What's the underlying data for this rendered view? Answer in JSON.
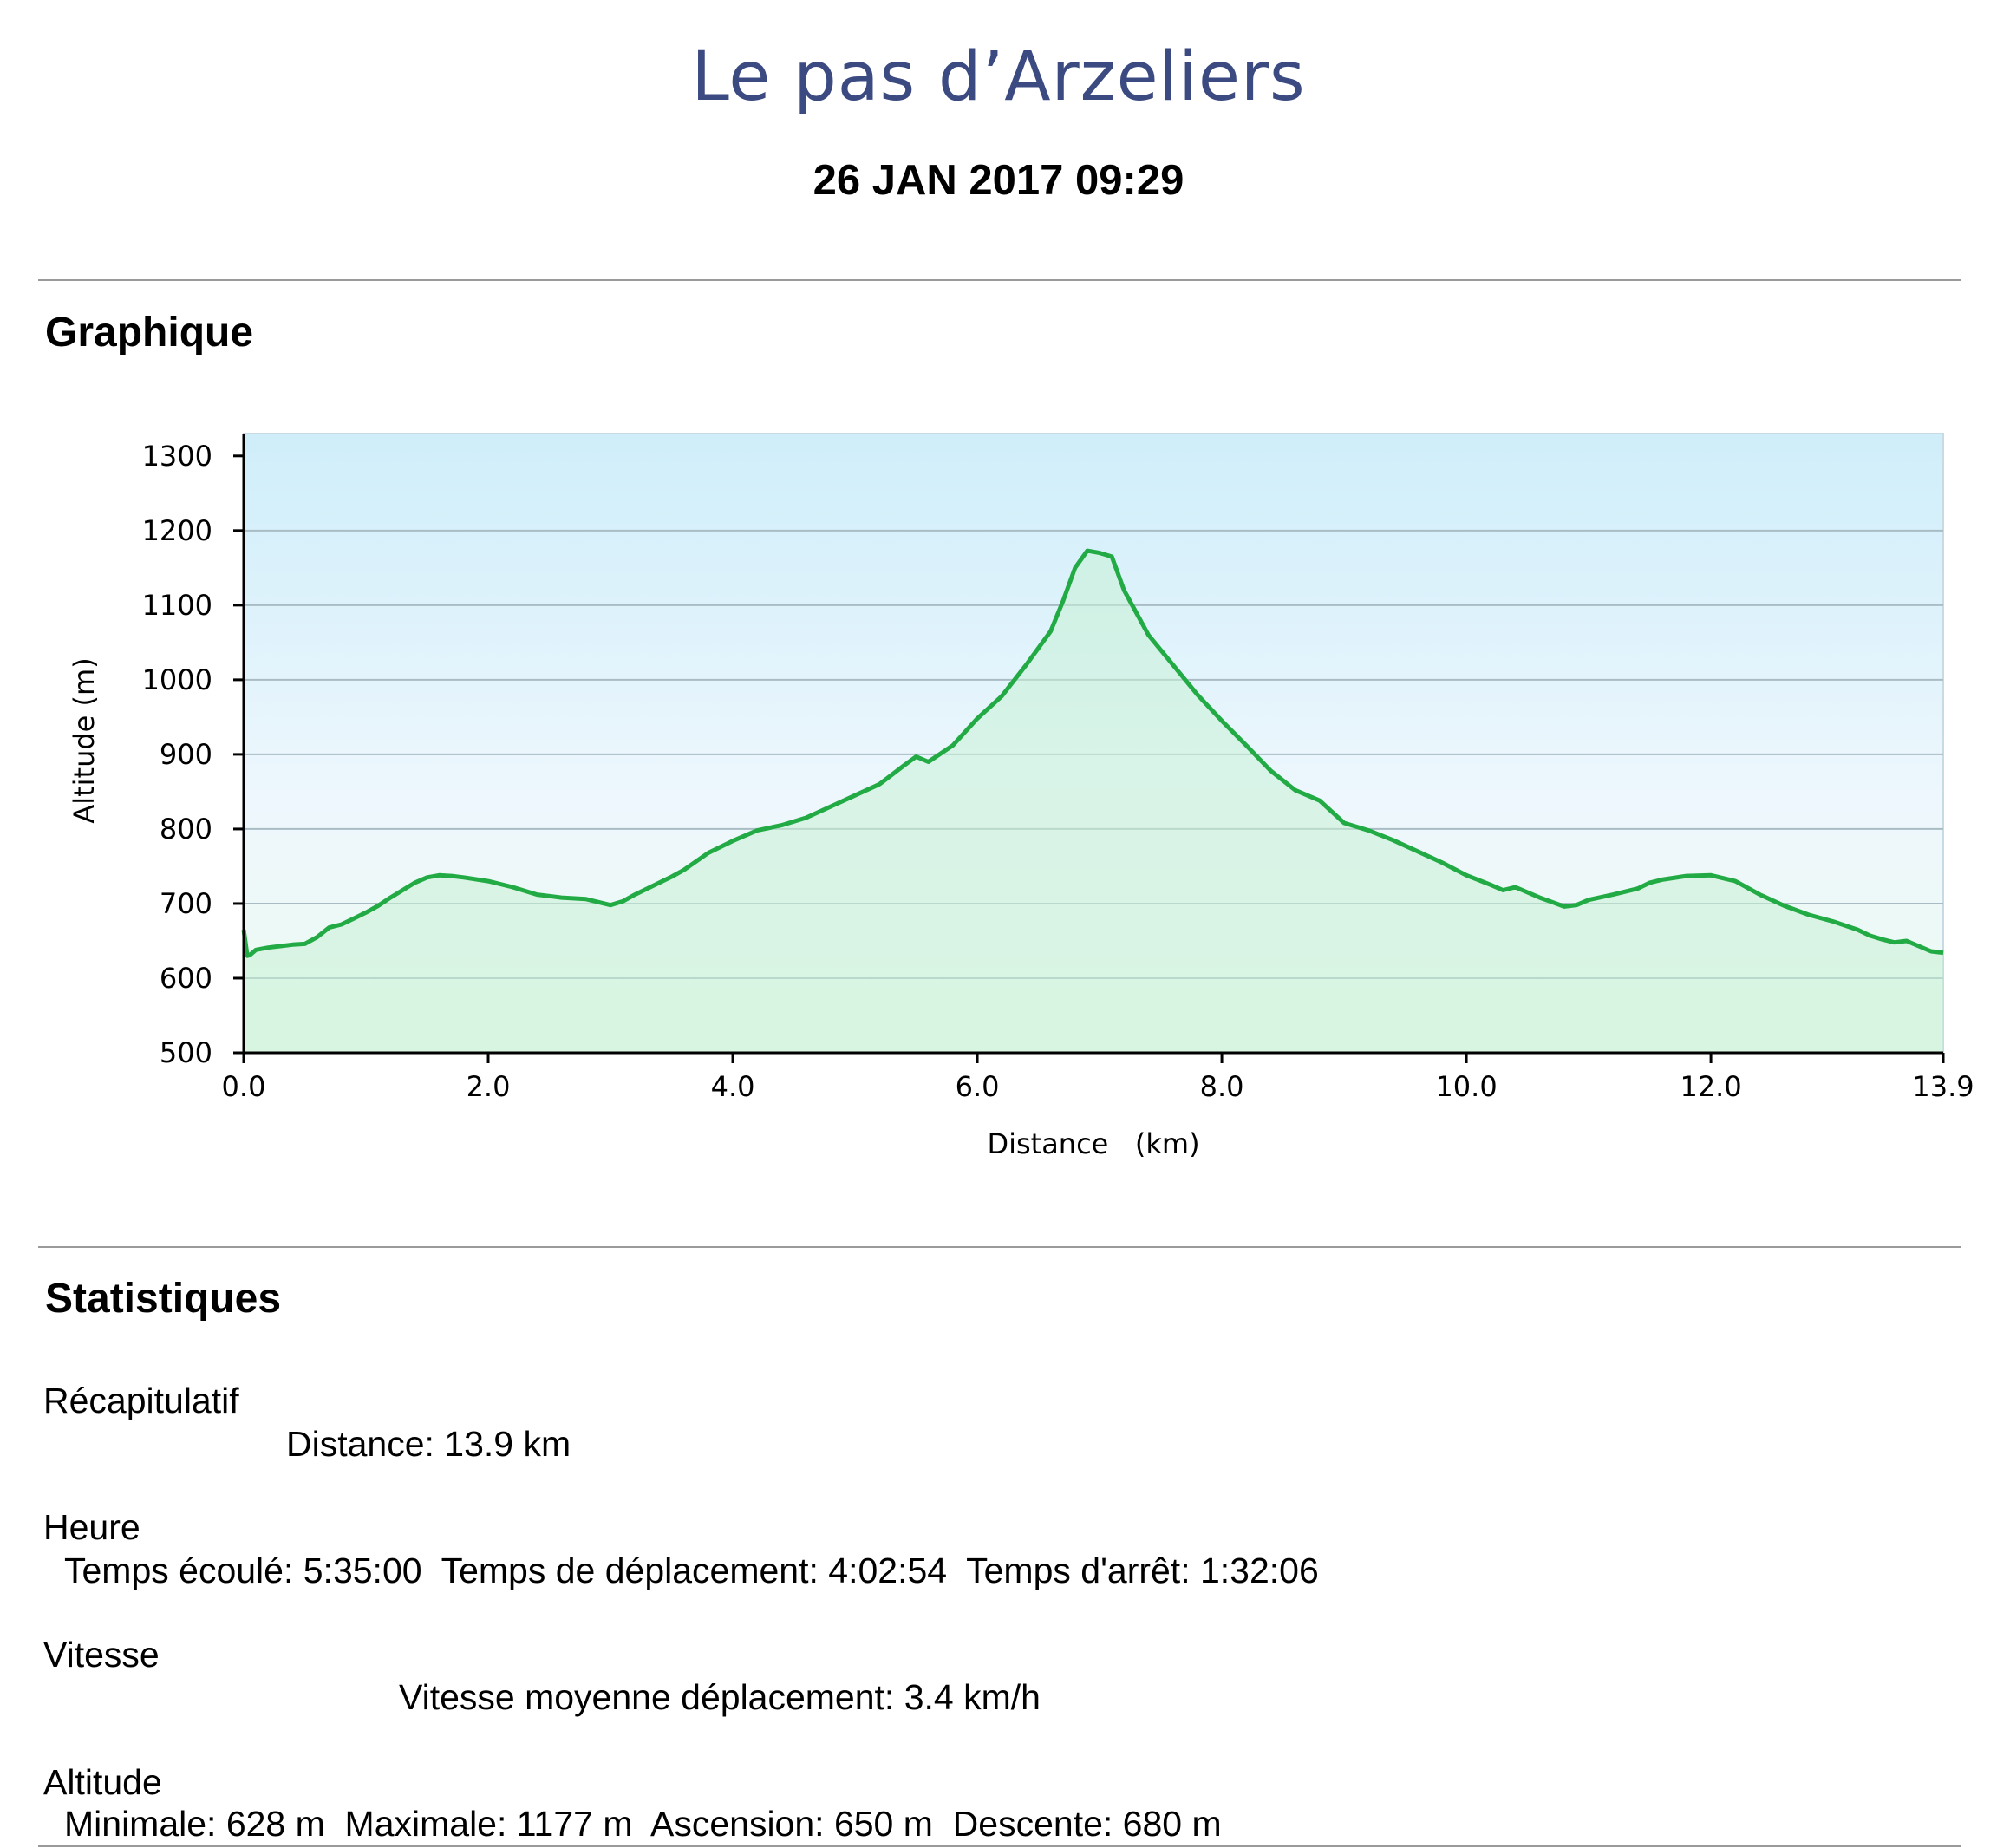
{
  "header": {
    "title": "Le pas d’Arzeliers",
    "date": "26 JAN 2017 09:29"
  },
  "sections": {
    "graph_title": "Graphique",
    "stats_title": "Statistiques"
  },
  "chart_data": {
    "type": "area",
    "xlabel": "Distance   (km)",
    "ylabel": "Altitude (m)",
    "xlim": [
      0,
      13.9
    ],
    "ylim": [
      500,
      1330
    ],
    "grid": true,
    "x_ticks": [
      "0.0",
      "2.0",
      "4.0",
      "6.0",
      "8.0",
      "10.0",
      "12.0",
      "13.9"
    ],
    "x_tick_values": [
      0,
      2,
      4,
      6,
      8,
      10,
      12,
      13.9
    ],
    "y_ticks": [
      "500",
      "600",
      "700",
      "800",
      "900",
      "1000",
      "1100",
      "1200",
      "1300"
    ],
    "y_tick_values": [
      500,
      600,
      700,
      800,
      900,
      1000,
      1100,
      1200,
      1300
    ],
    "colors": {
      "line": "#22aa44",
      "fill_top": "#d2eef9",
      "fill_bottom": "#ecfbf0",
      "area": "#c8f0d6"
    },
    "series": [
      {
        "x": [
          0,
          0.03,
          0.05,
          0.1,
          0.2,
          0.3,
          0.4,
          0.5,
          0.6,
          0.7,
          0.8,
          0.9,
          1.0,
          1.1,
          1.2,
          1.3,
          1.4,
          1.5,
          1.6,
          1.7,
          1.8,
          2.0,
          2.2,
          2.4,
          2.6,
          2.8,
          3.0,
          3.1,
          3.2,
          3.3,
          3.5,
          3.6,
          3.8,
          4.0,
          4.2,
          4.4,
          4.6,
          4.8,
          5.0,
          5.2,
          5.4,
          5.5,
          5.6,
          5.8,
          6.0,
          6.2,
          6.4,
          6.6,
          6.7,
          6.8,
          6.9,
          7.0,
          7.1,
          7.2,
          7.3,
          7.4,
          7.6,
          7.8,
          8.0,
          8.2,
          8.4,
          8.6,
          8.8,
          9.0,
          9.2,
          9.4,
          9.6,
          9.8,
          10.0,
          10.2,
          10.3,
          10.4,
          10.5,
          10.6,
          10.7,
          10.8,
          10.9,
          11.0,
          11.2,
          11.4,
          11.5,
          11.6,
          11.8,
          12.0,
          12.2,
          12.4,
          12.6,
          12.8,
          13.0,
          13.2,
          13.3,
          13.4,
          13.5,
          13.6,
          13.7,
          13.8,
          13.9
        ],
        "values": [
          665,
          630,
          631,
          638,
          641,
          643,
          645,
          646,
          655,
          668,
          672,
          680,
          688,
          697,
          708,
          718,
          728,
          735,
          738,
          737,
          735,
          730,
          722,
          712,
          708,
          706,
          698,
          703,
          712,
          720,
          736,
          745,
          768,
          784,
          798,
          805,
          815,
          830,
          845,
          860,
          885,
          897,
          890,
          912,
          948,
          978,
          1020,
          1065,
          1105,
          1150,
          1173,
          1170,
          1165,
          1120,
          1090,
          1060,
          1020,
          980,
          945,
          912,
          878,
          852,
          838,
          808,
          798,
          785,
          770,
          755,
          738,
          725,
          718,
          722,
          715,
          708,
          702,
          696,
          698,
          705,
          712,
          720,
          728,
          732,
          737,
          738,
          730,
          712,
          697,
          685,
          676,
          665,
          657,
          652,
          648,
          650,
          643,
          636,
          634
        ]
      }
    ]
  },
  "stats": {
    "recap_label": "Récapitulatif",
    "distance": "Distance: 13.9 km",
    "time_label": "Heure",
    "time_line": "Temps écoulé: 5:35:00  Temps de déplacement: 4:02:54  Temps d'arrêt: 1:32:06",
    "speed_label": "Vitesse",
    "speed_line": "Vitesse moyenne déplacement: 3.4 km/h",
    "altitude_label": "Altitude",
    "altitude_line": "Minimale: 628 m  Maximale: 1177 m  Ascension: 650 m  Descente: 680 m"
  }
}
